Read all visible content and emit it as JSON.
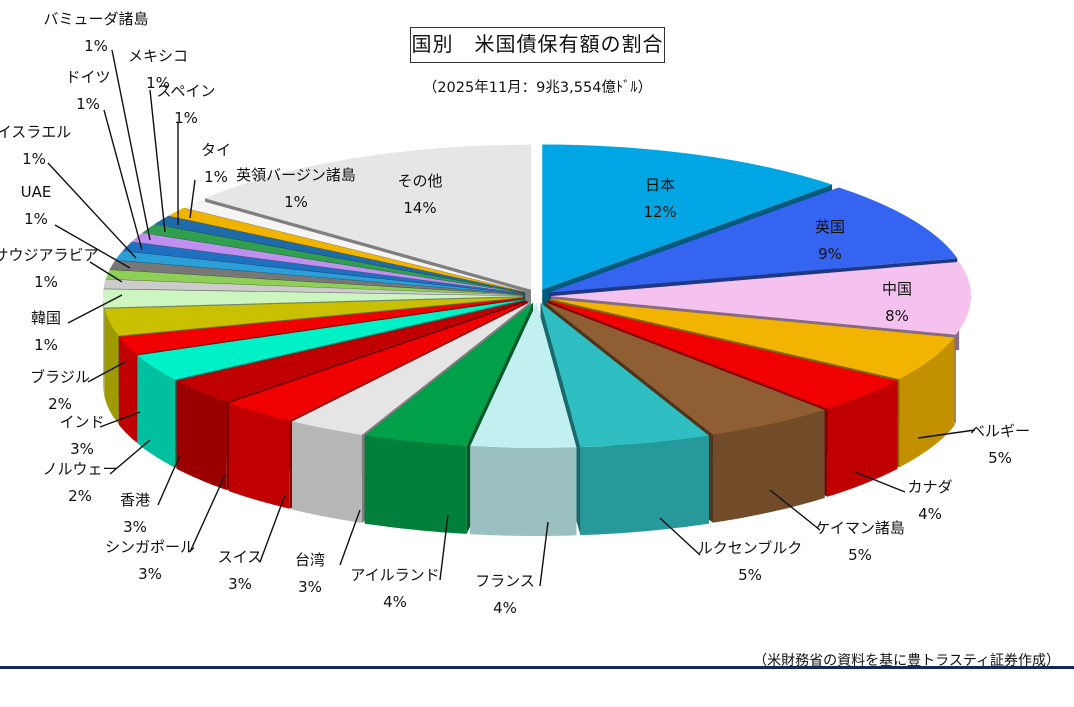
{
  "header": {
    "title": "国別　米国債保有額の割合",
    "subtitle": "（2025年11月：9兆3,554億ﾄﾞﾙ）"
  },
  "footer": {
    "source": "（米財務省の資料を基に豊トラスティ証券作成）"
  },
  "chart_data": {
    "type": "pie",
    "title": "国別　米国債保有額の割合",
    "unit": "%",
    "slices": [
      {
        "name": "日本",
        "value": 12,
        "label": "12%",
        "color": "#00a6e4"
      },
      {
        "name": "英国",
        "value": 9,
        "label": "9%",
        "color": "#3565f0"
      },
      {
        "name": "中国",
        "value": 8,
        "label": "8%",
        "color": "#f5c2f0"
      },
      {
        "name": "ベルギー",
        "value": 5,
        "label": "5%",
        "color": "#f2b400"
      },
      {
        "name": "カナダ",
        "value": 4,
        "label": "4%",
        "color": "#f00000"
      },
      {
        "name": "ケイマン諸島",
        "value": 5,
        "label": "5%",
        "color": "#8f5e32"
      },
      {
        "name": "ルクセンブルク",
        "value": 5,
        "label": "5%",
        "color": "#2fbfc2"
      },
      {
        "name": "フランス",
        "value": 4,
        "label": "4%",
        "color": "#c2f0f0"
      },
      {
        "name": "アイルランド",
        "value": 4,
        "label": "4%",
        "color": "#00a04a"
      },
      {
        "name": "台湾",
        "value": 3,
        "label": "3%",
        "color": "#e5e5e5"
      },
      {
        "name": "スイス",
        "value": 3,
        "label": "3%",
        "color": "#f00000"
      },
      {
        "name": "シンガポール",
        "value": 3,
        "label": "3%",
        "color": "#c00000"
      },
      {
        "name": "香港",
        "value": 3,
        "label": "3%",
        "color": "#00f0c8"
      },
      {
        "name": "ノルウェー",
        "value": 2,
        "label": "2%",
        "color": "#f00000"
      },
      {
        "name": "インド",
        "value": 3,
        "label": "3%",
        "color": "#c8c000"
      },
      {
        "name": "ブラジル",
        "value": 2,
        "label": "2%",
        "color": "#cdf5c0"
      },
      {
        "name": "韓国",
        "value": 1,
        "label": "1%",
        "color": "#cccccc"
      },
      {
        "name": "サウジアラビア",
        "value": 1,
        "label": "1%",
        "color": "#8ed055"
      },
      {
        "name": "UAE",
        "value": 1,
        "label": "1%",
        "color": "#777777"
      },
      {
        "name": "イスラエル",
        "value": 1,
        "label": "1%",
        "color": "#2ba0d8"
      },
      {
        "name": "ドイツ",
        "value": 1,
        "label": "1%",
        "color": "#2070c0"
      },
      {
        "name": "バミューダ諸島",
        "value": 1,
        "label": "1%",
        "color": "#c090f0"
      },
      {
        "name": "メキシコ",
        "value": 1,
        "label": "1%",
        "color": "#30a050"
      },
      {
        "name": "スペイン",
        "value": 1,
        "label": "1%",
        "color": "#1f6aa8"
      },
      {
        "name": "タイ",
        "value": 1,
        "label": "1%",
        "color": "#f0b400"
      },
      {
        "name": "英領バージン諸島",
        "value": 1,
        "label": "1%",
        "color": "#f5f5f5"
      },
      {
        "name": "その他",
        "value": 14,
        "label": "14%",
        "color": "#e6e6e6"
      }
    ]
  }
}
